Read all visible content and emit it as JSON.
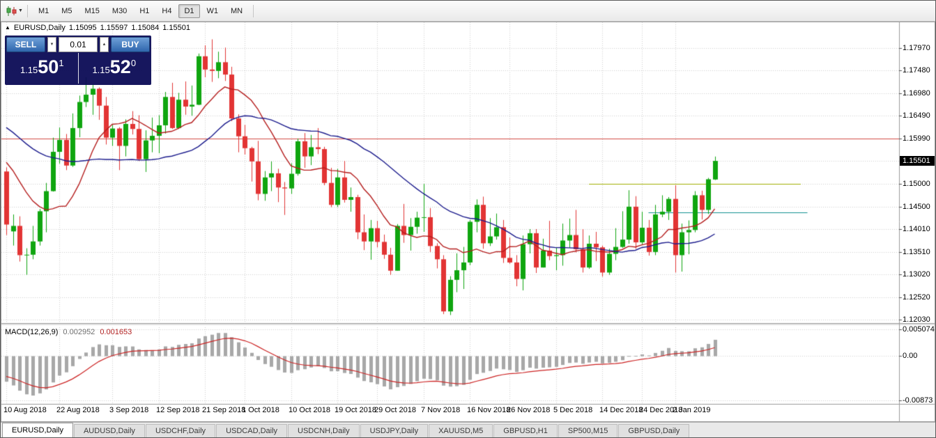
{
  "toolbar": {
    "chart_type_icon": "candlestick-chart-icon",
    "dropdown_icon": "▼",
    "timeframes": [
      {
        "label": "M1",
        "active": false
      },
      {
        "label": "M5",
        "active": false
      },
      {
        "label": "M15",
        "active": false
      },
      {
        "label": "M30",
        "active": false
      },
      {
        "label": "H1",
        "active": false
      },
      {
        "label": "H4",
        "active": false
      },
      {
        "label": "D1",
        "active": true
      },
      {
        "label": "W1",
        "active": false
      },
      {
        "label": "MN",
        "active": false
      }
    ]
  },
  "chart": {
    "one_click_toggle_icon": "▲",
    "title": {
      "symbol": "EURUSD,Daily",
      "open": "1.15095",
      "high": "1.15597",
      "low": "1.15084",
      "close": "1.15501"
    },
    "one_click": {
      "sell_label": "SELL",
      "buy_label": "BUY",
      "volume": "0.01",
      "vol_down_icon": "▼",
      "vol_up_icon": "▲",
      "bid": {
        "prefix": "1.15",
        "big": "50",
        "sup": "1"
      },
      "ask": {
        "prefix": "1.15",
        "big": "52",
        "sup": "0"
      }
    },
    "price_axis": {
      "labels": [
        "1.17970",
        "1.17480",
        "1.16980",
        "1.16490",
        "1.15990",
        "1.15000",
        "1.14500",
        "1.14010",
        "1.13510",
        "1.13020",
        "1.12520",
        "1.12030"
      ],
      "current_price": "1.15501"
    }
  },
  "macd_panel": {
    "label": "MACD(12,26,9)",
    "main_value": "0.002952",
    "signal_value": "0.001653",
    "axis_labels": [
      "0.005074",
      "0.00",
      "-0.00873"
    ]
  },
  "tabs": [
    {
      "label": "EURUSD,Daily",
      "active": true
    },
    {
      "label": "AUDUSD,Daily",
      "active": false
    },
    {
      "label": "USDCHF,Daily",
      "active": false
    },
    {
      "label": "USDCAD,Daily",
      "active": false
    },
    {
      "label": "USDCNH,Daily",
      "active": false
    },
    {
      "label": "USDJPY,Daily",
      "active": false
    },
    {
      "label": "XAUUSD,M5",
      "active": false
    },
    {
      "label": "GBPUSD,H1",
      "active": false
    },
    {
      "label": "SP500,M15",
      "active": false
    },
    {
      "label": "GBPUSD,Daily",
      "active": false
    }
  ],
  "chart_data": {
    "type": "candlestick",
    "symbol": "EURUSD",
    "timeframe": "Daily",
    "ohlc_current": {
      "open": 1.15095,
      "high": 1.15597,
      "low": 1.15084,
      "close": 1.15501
    },
    "bid": 1.15501,
    "ask": 1.1552,
    "y_grid": [
      1.1797,
      1.1748,
      1.1698,
      1.1649,
      1.1599,
      1.155,
      1.15,
      1.145,
      1.1401,
      1.1351,
      1.1302,
      1.1252,
      1.1203
    ],
    "x_ticks": [
      "10 Aug 2018",
      "22 Aug 2018",
      "3 Sep 2018",
      "12 Sep 2018",
      "21 Sep 2018",
      "1 Oct 2018",
      "10 Oct 2018",
      "19 Oct 2018",
      "29 Oct 2018",
      "7 Nov 2018",
      "16 Nov 2018",
      "26 Nov 2018",
      "5 Dec 2018",
      "14 Dec 2018",
      "24 Dec 2018",
      "2 Jan 2019"
    ],
    "hlines": [
      {
        "price": 1.1599,
        "color": "#d24a43",
        "span": "full"
      },
      {
        "price": 1.15,
        "color": "#9fae00",
        "span": "partial",
        "from_bar": 88,
        "to_bar": 120
      },
      {
        "price": 1.1437,
        "color": "#0f8f8f",
        "span": "partial",
        "from_bar": 97,
        "to_bar": 121
      }
    ],
    "moving_averages": [
      {
        "type": "sma",
        "period": 10,
        "color": "#b51d1d"
      },
      {
        "type": "sma",
        "period": 30,
        "color": "#1a1a8c"
      }
    ],
    "macd": {
      "fast": 12,
      "slow": 26,
      "signal": 9,
      "main": 0.002952,
      "signal_value": 0.001653,
      "scale_max": 0.005074,
      "scale_min": -0.00873
    },
    "colors": {
      "up": "#0fa50f",
      "down": "#e23434",
      "grid": "#cfcfcf",
      "macd_hist": "#a8a8a8",
      "macd_signal": "#cc2222",
      "current_price_bg": "#000000"
    },
    "candles": [
      [
        "10 Aug 2018",
        1.1527,
        1.1536,
        1.1388,
        1.1411
      ],
      [
        "13 Aug 2018",
        1.1396,
        1.1433,
        1.1365,
        1.1408
      ],
      [
        "14 Aug 2018",
        1.1408,
        1.1429,
        1.133,
        1.1344
      ],
      [
        "15 Aug 2018",
        1.1344,
        1.1359,
        1.1301,
        1.1345
      ],
      [
        "16 Aug 2018",
        1.1345,
        1.1408,
        1.1335,
        1.1374
      ],
      [
        "17 Aug 2018",
        1.1374,
        1.1445,
        1.1365,
        1.144
      ],
      [
        "20 Aug 2018",
        1.144,
        1.1502,
        1.1394,
        1.1484
      ],
      [
        "21 Aug 2018",
        1.1484,
        1.1601,
        1.1483,
        1.157
      ],
      [
        "22 Aug 2018",
        1.157,
        1.1623,
        1.1544,
        1.1596
      ],
      [
        "23 Aug 2018",
        1.1596,
        1.1609,
        1.153,
        1.154
      ],
      [
        "24 Aug 2018",
        1.154,
        1.1654,
        1.1537,
        1.1622
      ],
      [
        "27 Aug 2018",
        1.1622,
        1.1693,
        1.1602,
        1.1679
      ],
      [
        "28 Aug 2018",
        1.1679,
        1.1733,
        1.1668,
        1.1695
      ],
      [
        "29 Aug 2018",
        1.1695,
        1.1717,
        1.1651,
        1.1708
      ],
      [
        "30 Aug 2018",
        1.1708,
        1.1711,
        1.164,
        1.1671
      ],
      [
        "31 Aug 2018",
        1.1671,
        1.169,
        1.1586,
        1.1601
      ],
      [
        "3 Sep 2018",
        1.1601,
        1.1629,
        1.1583,
        1.1621
      ],
      [
        "4 Sep 2018",
        1.1621,
        1.1624,
        1.153,
        1.1583
      ],
      [
        "5 Sep 2018",
        1.1583,
        1.1641,
        1.156,
        1.1631
      ],
      [
        "6 Sep 2018",
        1.1631,
        1.1659,
        1.1608,
        1.162
      ],
      [
        "7 Sep 2018",
        1.162,
        1.165,
        1.155,
        1.1554
      ],
      [
        "10 Sep 2018",
        1.1554,
        1.1617,
        1.1526,
        1.1595
      ],
      [
        "11 Sep 2018",
        1.1595,
        1.1645,
        1.1569,
        1.1605
      ],
      [
        "12 Sep 2018",
        1.1605,
        1.165,
        1.1567,
        1.1628
      ],
      [
        "13 Sep 2018",
        1.1628,
        1.1701,
        1.161,
        1.169
      ],
      [
        "14 Sep 2018",
        1.169,
        1.1721,
        1.162,
        1.1622
      ],
      [
        "17 Sep 2018",
        1.1622,
        1.1699,
        1.162,
        1.1684
      ],
      [
        "18 Sep 2018",
        1.1684,
        1.1724,
        1.1651,
        1.1669
      ],
      [
        "19 Sep 2018",
        1.1669,
        1.1715,
        1.1649,
        1.1673
      ],
      [
        "20 Sep 2018",
        1.1673,
        1.1785,
        1.1672,
        1.1779
      ],
      [
        "21 Sep 2018",
        1.1779,
        1.1803,
        1.1733,
        1.175
      ],
      [
        "24 Sep 2018",
        1.175,
        1.1816,
        1.1723,
        1.1747
      ],
      [
        "25 Sep 2018",
        1.1747,
        1.1789,
        1.1731,
        1.1766
      ],
      [
        "26 Sep 2018",
        1.1766,
        1.1798,
        1.1725,
        1.1739
      ],
      [
        "27 Sep 2018",
        1.1739,
        1.1756,
        1.1637,
        1.1643
      ],
      [
        "28 Sep 2018",
        1.1643,
        1.1652,
        1.1569,
        1.1604
      ],
      [
        "1 Oct 2018",
        1.1604,
        1.1629,
        1.1564,
        1.1578
      ],
      [
        "2 Oct 2018",
        1.1578,
        1.1581,
        1.1505,
        1.1549
      ],
      [
        "3 Oct 2018",
        1.1549,
        1.1594,
        1.1464,
        1.1478
      ],
      [
        "4 Oct 2018",
        1.1478,
        1.1528,
        1.1463,
        1.1514
      ],
      [
        "5 Oct 2018",
        1.1514,
        1.1549,
        1.1484,
        1.1523
      ],
      [
        "8 Oct 2018",
        1.1523,
        1.1533,
        1.146,
        1.1492
      ],
      [
        "9 Oct 2018",
        1.1492,
        1.1504,
        1.1432,
        1.149
      ],
      [
        "10 Oct 2018",
        1.149,
        1.1545,
        1.1478,
        1.1522
      ],
      [
        "11 Oct 2018",
        1.1522,
        1.1599,
        1.1518,
        1.1593
      ],
      [
        "12 Oct 2018",
        1.1593,
        1.1611,
        1.1535,
        1.156
      ],
      [
        "15 Oct 2018",
        1.156,
        1.1607,
        1.1541,
        1.158
      ],
      [
        "16 Oct 2018",
        1.158,
        1.1622,
        1.1565,
        1.1576
      ],
      [
        "17 Oct 2018",
        1.1576,
        1.1581,
        1.1497,
        1.1502
      ],
      [
        "18 Oct 2018",
        1.1502,
        1.1535,
        1.1449,
        1.1454
      ],
      [
        "19 Oct 2018",
        1.1454,
        1.1533,
        1.1449,
        1.1514
      ],
      [
        "22 Oct 2018",
        1.1514,
        1.155,
        1.1459,
        1.1465
      ],
      [
        "23 Oct 2018",
        1.1465,
        1.1492,
        1.1439,
        1.1471
      ],
      [
        "24 Oct 2018",
        1.1471,
        1.1476,
        1.1379,
        1.1394
      ],
      [
        "25 Oct 2018",
        1.1394,
        1.1433,
        1.1355,
        1.1374
      ],
      [
        "26 Oct 2018",
        1.1374,
        1.1421,
        1.1334,
        1.1403
      ],
      [
        "29 Oct 2018",
        1.1403,
        1.1419,
        1.1361,
        1.1373
      ],
      [
        "30 Oct 2018",
        1.1373,
        1.1389,
        1.1336,
        1.1345
      ],
      [
        "31 Oct 2018",
        1.1345,
        1.136,
        1.1301,
        1.131
      ],
      [
        "1 Nov 2018",
        1.131,
        1.1412,
        1.131,
        1.1408
      ],
      [
        "2 Nov 2018",
        1.1408,
        1.1456,
        1.1371,
        1.1388
      ],
      [
        "5 Nov 2018",
        1.1388,
        1.1425,
        1.1354,
        1.1406
      ],
      [
        "6 Nov 2018",
        1.1406,
        1.1439,
        1.1391,
        1.1426
      ],
      [
        "7 Nov 2018",
        1.1426,
        1.15,
        1.1395,
        1.1427
      ],
      [
        "8 Nov 2018",
        1.1427,
        1.1447,
        1.1351,
        1.1364
      ],
      [
        "9 Nov 2018",
        1.1364,
        1.137,
        1.1315,
        1.1335
      ],
      [
        "12 Nov 2018",
        1.1335,
        1.1344,
        1.1215,
        1.1221
      ],
      [
        "13 Nov 2018",
        1.1221,
        1.1298,
        1.1213,
        1.129
      ],
      [
        "14 Nov 2018",
        1.129,
        1.1348,
        1.1263,
        1.1311
      ],
      [
        "15 Nov 2018",
        1.1311,
        1.1362,
        1.127,
        1.1328
      ],
      [
        "16 Nov 2018",
        1.1328,
        1.1421,
        1.1322,
        1.1417
      ],
      [
        "19 Nov 2018",
        1.1417,
        1.1466,
        1.1394,
        1.1454
      ],
      [
        "20 Nov 2018",
        1.1454,
        1.1472,
        1.1358,
        1.137
      ],
      [
        "21 Nov 2018",
        1.137,
        1.1425,
        1.1364,
        1.1385
      ],
      [
        "22 Nov 2018",
        1.1385,
        1.1435,
        1.1378,
        1.1405
      ],
      [
        "23 Nov 2018",
        1.1405,
        1.1421,
        1.1327,
        1.1338
      ],
      [
        "26 Nov 2018",
        1.1338,
        1.1383,
        1.1325,
        1.1328
      ],
      [
        "27 Nov 2018",
        1.1328,
        1.1344,
        1.1276,
        1.1292
      ],
      [
        "28 Nov 2018",
        1.1292,
        1.1387,
        1.1267,
        1.1368
      ],
      [
        "29 Nov 2018",
        1.1368,
        1.1401,
        1.1348,
        1.1392
      ],
      [
        "30 Nov 2018",
        1.1392,
        1.1401,
        1.1305,
        1.1317
      ],
      [
        "3 Dec 2018",
        1.1317,
        1.138,
        1.1317,
        1.1354
      ],
      [
        "4 Dec 2018",
        1.1354,
        1.1419,
        1.1333,
        1.1342
      ],
      [
        "5 Dec 2018",
        1.1342,
        1.136,
        1.1311,
        1.1344
      ],
      [
        "6 Dec 2018",
        1.1344,
        1.1413,
        1.1321,
        1.1376
      ],
      [
        "7 Dec 2018",
        1.1376,
        1.1424,
        1.136,
        1.1388
      ],
      [
        "10 Dec 2018",
        1.1388,
        1.1443,
        1.135,
        1.1357
      ],
      [
        "11 Dec 2018",
        1.1357,
        1.1401,
        1.1306,
        1.1317
      ],
      [
        "12 Dec 2018",
        1.1317,
        1.1387,
        1.1314,
        1.1369
      ],
      [
        "13 Dec 2018",
        1.1369,
        1.1395,
        1.1331,
        1.1361
      ],
      [
        "14 Dec 2018",
        1.1361,
        1.1365,
        1.1297,
        1.1306
      ],
      [
        "17 Dec 2018",
        1.1306,
        1.1358,
        1.1301,
        1.1347
      ],
      [
        "18 Dec 2018",
        1.1347,
        1.1403,
        1.1333,
        1.1362
      ],
      [
        "19 Dec 2018",
        1.1362,
        1.144,
        1.136,
        1.1378
      ],
      [
        "20 Dec 2018",
        1.1378,
        1.1486,
        1.1369,
        1.145
      ],
      [
        "21 Dec 2018",
        1.145,
        1.1473,
        1.1358,
        1.1372
      ],
      [
        "24 Dec 2018",
        1.1372,
        1.1439,
        1.1366,
        1.1404
      ],
      [
        "26 Dec 2018",
        1.1404,
        1.1421,
        1.1343,
        1.1351
      ],
      [
        "27 Dec 2018",
        1.1351,
        1.1454,
        1.1344,
        1.1433
      ],
      [
        "28 Dec 2018",
        1.1433,
        1.1475,
        1.1427,
        1.1439
      ],
      [
        "31 Dec 2018",
        1.1439,
        1.1471,
        1.1421,
        1.1467
      ],
      [
        "2 Jan 2019",
        1.1467,
        1.1497,
        1.1306,
        1.1344
      ],
      [
        "3 Jan 2019",
        1.1344,
        1.1413,
        1.1308,
        1.1394
      ],
      [
        "4 Jan 2019",
        1.1394,
        1.142,
        1.1346,
        1.1399
      ],
      [
        "7 Jan 2019",
        1.1399,
        1.1484,
        1.1394,
        1.1475
      ],
      [
        "8 Jan 2019",
        1.1475,
        1.1485,
        1.1422,
        1.1443
      ],
      [
        "9 Jan 2019",
        1.1443,
        1.1513,
        1.1434,
        1.151
      ],
      [
        "10 Jan 2019",
        1.15095,
        1.15597,
        1.15084,
        1.15501
      ]
    ]
  }
}
